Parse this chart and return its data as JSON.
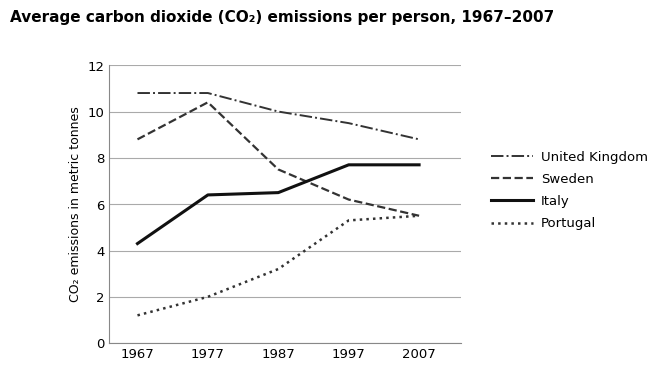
{
  "title": "Average carbon dioxide (CO₂) emissions per person, 1967–2007",
  "ylabel": "CO₂ emissions in metric tonnes",
  "xlabel": "",
  "years": [
    1967,
    1977,
    1987,
    1997,
    2007
  ],
  "series": {
    "United Kingdom": {
      "values": [
        10.8,
        10.8,
        10.0,
        9.5,
        8.8
      ],
      "linestyle": "dashdot",
      "color": "#333333",
      "linewidth": 1.4
    },
    "Sweden": {
      "values": [
        8.8,
        10.4,
        7.5,
        6.2,
        5.5
      ],
      "linestyle": "dashed",
      "color": "#333333",
      "linewidth": 1.6
    },
    "Italy": {
      "values": [
        4.3,
        6.4,
        6.5,
        7.7,
        7.7
      ],
      "linestyle": "solid",
      "color": "#111111",
      "linewidth": 2.2
    },
    "Portugal": {
      "values": [
        1.2,
        2.0,
        3.2,
        5.3,
        5.5
      ],
      "linestyle": "dotted",
      "color": "#333333",
      "linewidth": 1.8
    }
  },
  "ylim": [
    0,
    12
  ],
  "yticks": [
    0,
    2,
    4,
    6,
    8,
    10,
    12
  ],
  "xticks": [
    1967,
    1977,
    1987,
    1997,
    2007
  ],
  "xlim": [
    1963,
    2013
  ],
  "background_color": "#ffffff",
  "grid_color": "#aaaaaa",
  "title_fontsize": 11,
  "title_fontweight": "bold",
  "axis_label_fontsize": 9,
  "tick_fontsize": 9.5,
  "legend_fontsize": 9.5
}
